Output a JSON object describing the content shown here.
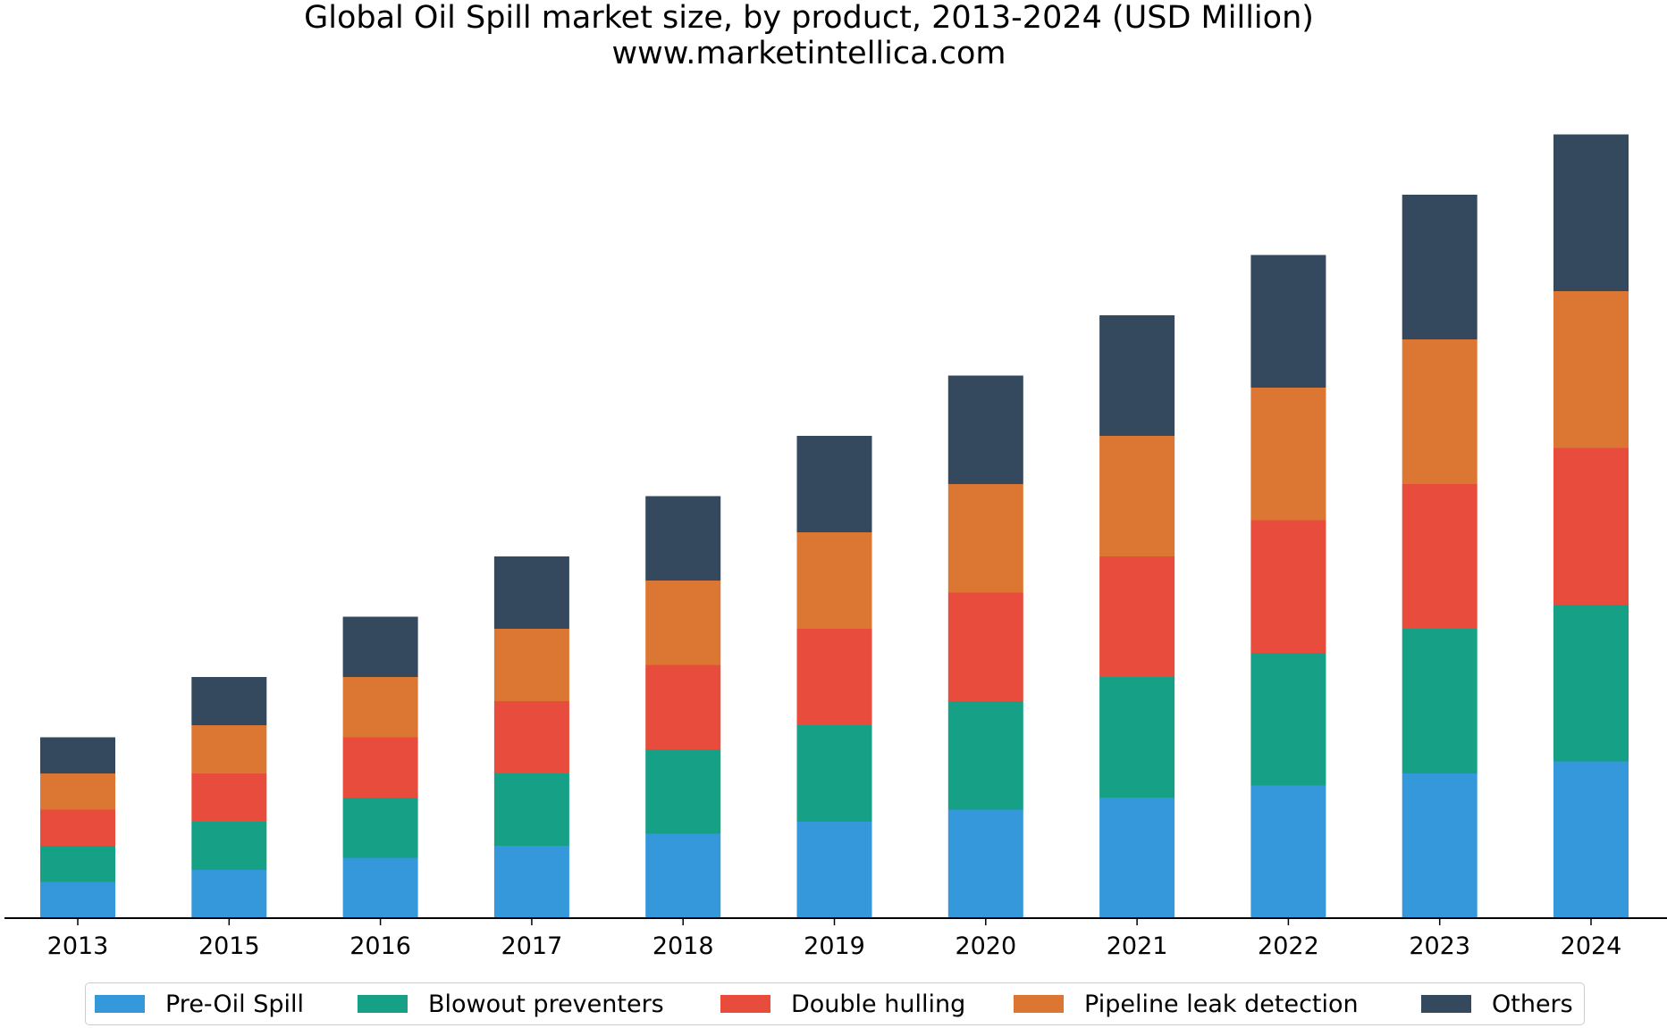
{
  "chart_data": {
    "type": "bar",
    "stacked": true,
    "title": "Global Oil Spill market size, by product, 2013-2024 (USD Million)",
    "subtitle": "www.marketintellica.com",
    "categories": [
      "2013",
      "2015",
      "2016",
      "2017",
      "2018",
      "2019",
      "2020",
      "2021",
      "2022",
      "2023",
      "2024"
    ],
    "series": [
      {
        "name": "Pre-Oil Spill",
        "color": "#3498db",
        "values": [
          1.5,
          2.0,
          2.5,
          3.0,
          3.5,
          4.0,
          4.5,
          5.0,
          5.5,
          6.0,
          6.5
        ]
      },
      {
        "name": "Blowout preventers",
        "color": "#16a085",
        "values": [
          1.5,
          2.0,
          2.5,
          3.0,
          3.5,
          4.0,
          4.5,
          5.0,
          5.5,
          6.0,
          6.5
        ]
      },
      {
        "name": "Double hulling",
        "color": "#e74c3c",
        "values": [
          1.5,
          2.0,
          2.5,
          3.0,
          3.5,
          4.0,
          4.5,
          5.0,
          5.5,
          6.0,
          6.5
        ]
      },
      {
        "name": "Pipeline leak detection",
        "color": "#dc7633",
        "values": [
          1.5,
          2.0,
          2.5,
          3.0,
          3.5,
          4.0,
          4.5,
          5.0,
          5.5,
          6.0,
          6.5
        ]
      },
      {
        "name": "Others",
        "color": "#34495e",
        "values": [
          1.5,
          2.0,
          2.5,
          3.0,
          3.5,
          4.0,
          4.5,
          5.0,
          5.5,
          6.0,
          6.5
        ]
      }
    ],
    "ylim": [
      0,
      35
    ],
    "legend_position": "bottom",
    "grid": false
  }
}
